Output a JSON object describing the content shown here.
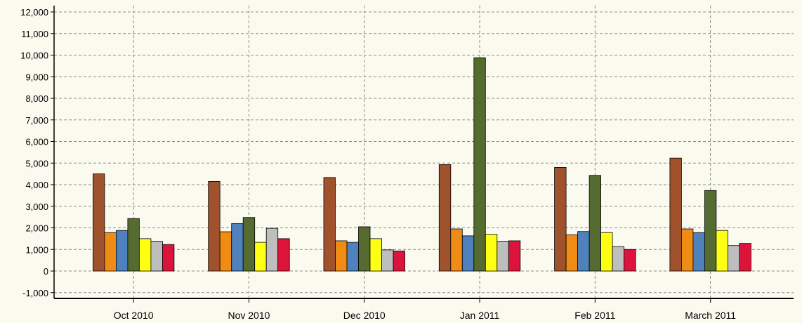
{
  "chart_data": {
    "type": "bar",
    "title": "",
    "xlabel": "",
    "ylabel": "",
    "ylim": [
      -1000,
      12000
    ],
    "ytick_step": 1000,
    "y_tick_labels": [
      "-1,000",
      "0",
      "1,000",
      "2,000",
      "3,000",
      "4,000",
      "5,000",
      "6,000",
      "7,000",
      "8,000",
      "9,000",
      "10,000",
      "11,000",
      "12,000"
    ],
    "grid": true,
    "legend": "none",
    "categories": [
      "Oct 2010",
      "Nov 2010",
      "Dec 2010",
      "Jan 2011",
      "Feb 2011",
      "March 2011"
    ],
    "series": [
      {
        "color": "#a0522d",
        "values": [
          4500,
          4150,
          4330,
          4930,
          4800,
          5230
        ]
      },
      {
        "color": "#f08c14",
        "values": [
          1780,
          1820,
          1400,
          1950,
          1680,
          1950
        ]
      },
      {
        "color": "#4f81bd",
        "values": [
          1880,
          2200,
          1330,
          1630,
          1830,
          1780
        ]
      },
      {
        "color": "#556b2f",
        "values": [
          2430,
          2480,
          2050,
          9880,
          4430,
          3730
        ]
      },
      {
        "color": "#ffff14",
        "values": [
          1500,
          1330,
          1500,
          1700,
          1780,
          1880
        ]
      },
      {
        "color": "#bebebe",
        "values": [
          1380,
          1980,
          980,
          1380,
          1130,
          1180
        ]
      },
      {
        "color": "#dc143c",
        "values": [
          1230,
          1500,
          930,
          1400,
          1000,
          1280
        ]
      }
    ]
  }
}
